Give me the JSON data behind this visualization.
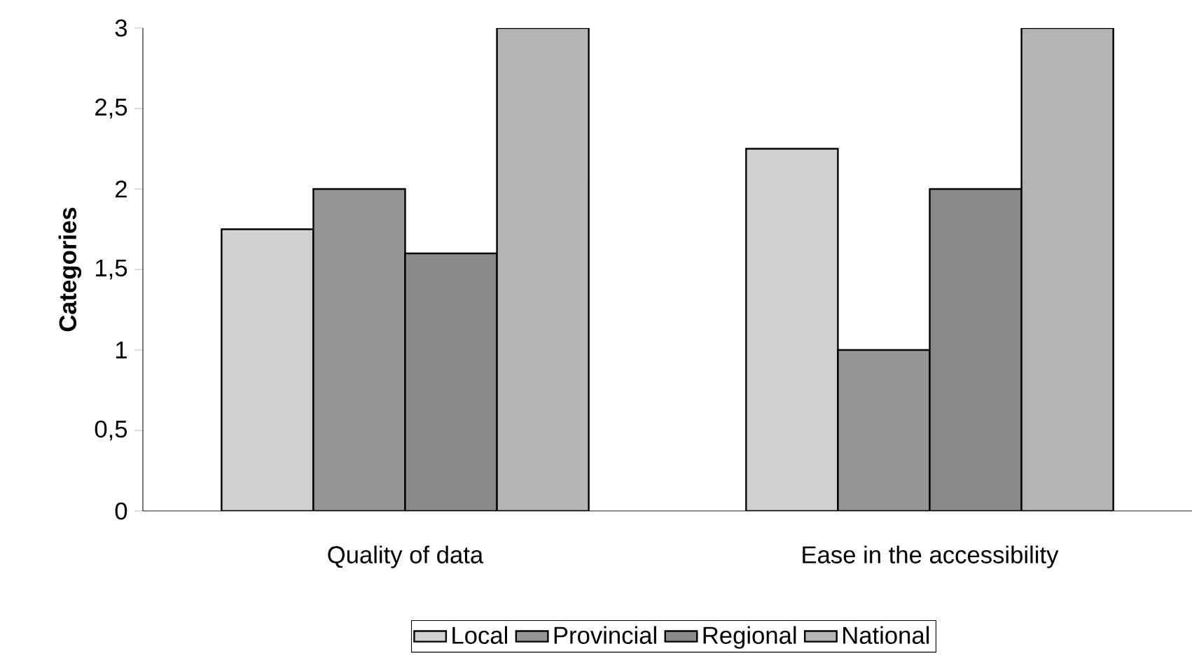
{
  "chart_data": {
    "type": "bar",
    "ylabel": "Categories",
    "categories": [
      "Quality of data",
      "Ease in the accessibility"
    ],
    "series": [
      {
        "name": "Local",
        "color": "#d0d0d0",
        "values": [
          1.75,
          2.25
        ]
      },
      {
        "name": "Provincial",
        "color": "#969696",
        "values": [
          2.0,
          1.0
        ]
      },
      {
        "name": "Regional",
        "color": "#8a8a8a",
        "values": [
          1.6,
          2.0
        ]
      },
      {
        "name": "National",
        "color": "#b4b4b4",
        "values": [
          3.0,
          3.0
        ]
      }
    ],
    "ylim": [
      0,
      3
    ],
    "yticks": [
      {
        "value": 0,
        "label": "0"
      },
      {
        "value": 0.5,
        "label": "0,5"
      },
      {
        "value": 1,
        "label": "1"
      },
      {
        "value": 1.5,
        "label": "1,5"
      },
      {
        "value": 2,
        "label": "2"
      },
      {
        "value": 2.5,
        "label": "2,5"
      },
      {
        "value": 3,
        "label": "3"
      }
    ],
    "legend": "bottom"
  }
}
